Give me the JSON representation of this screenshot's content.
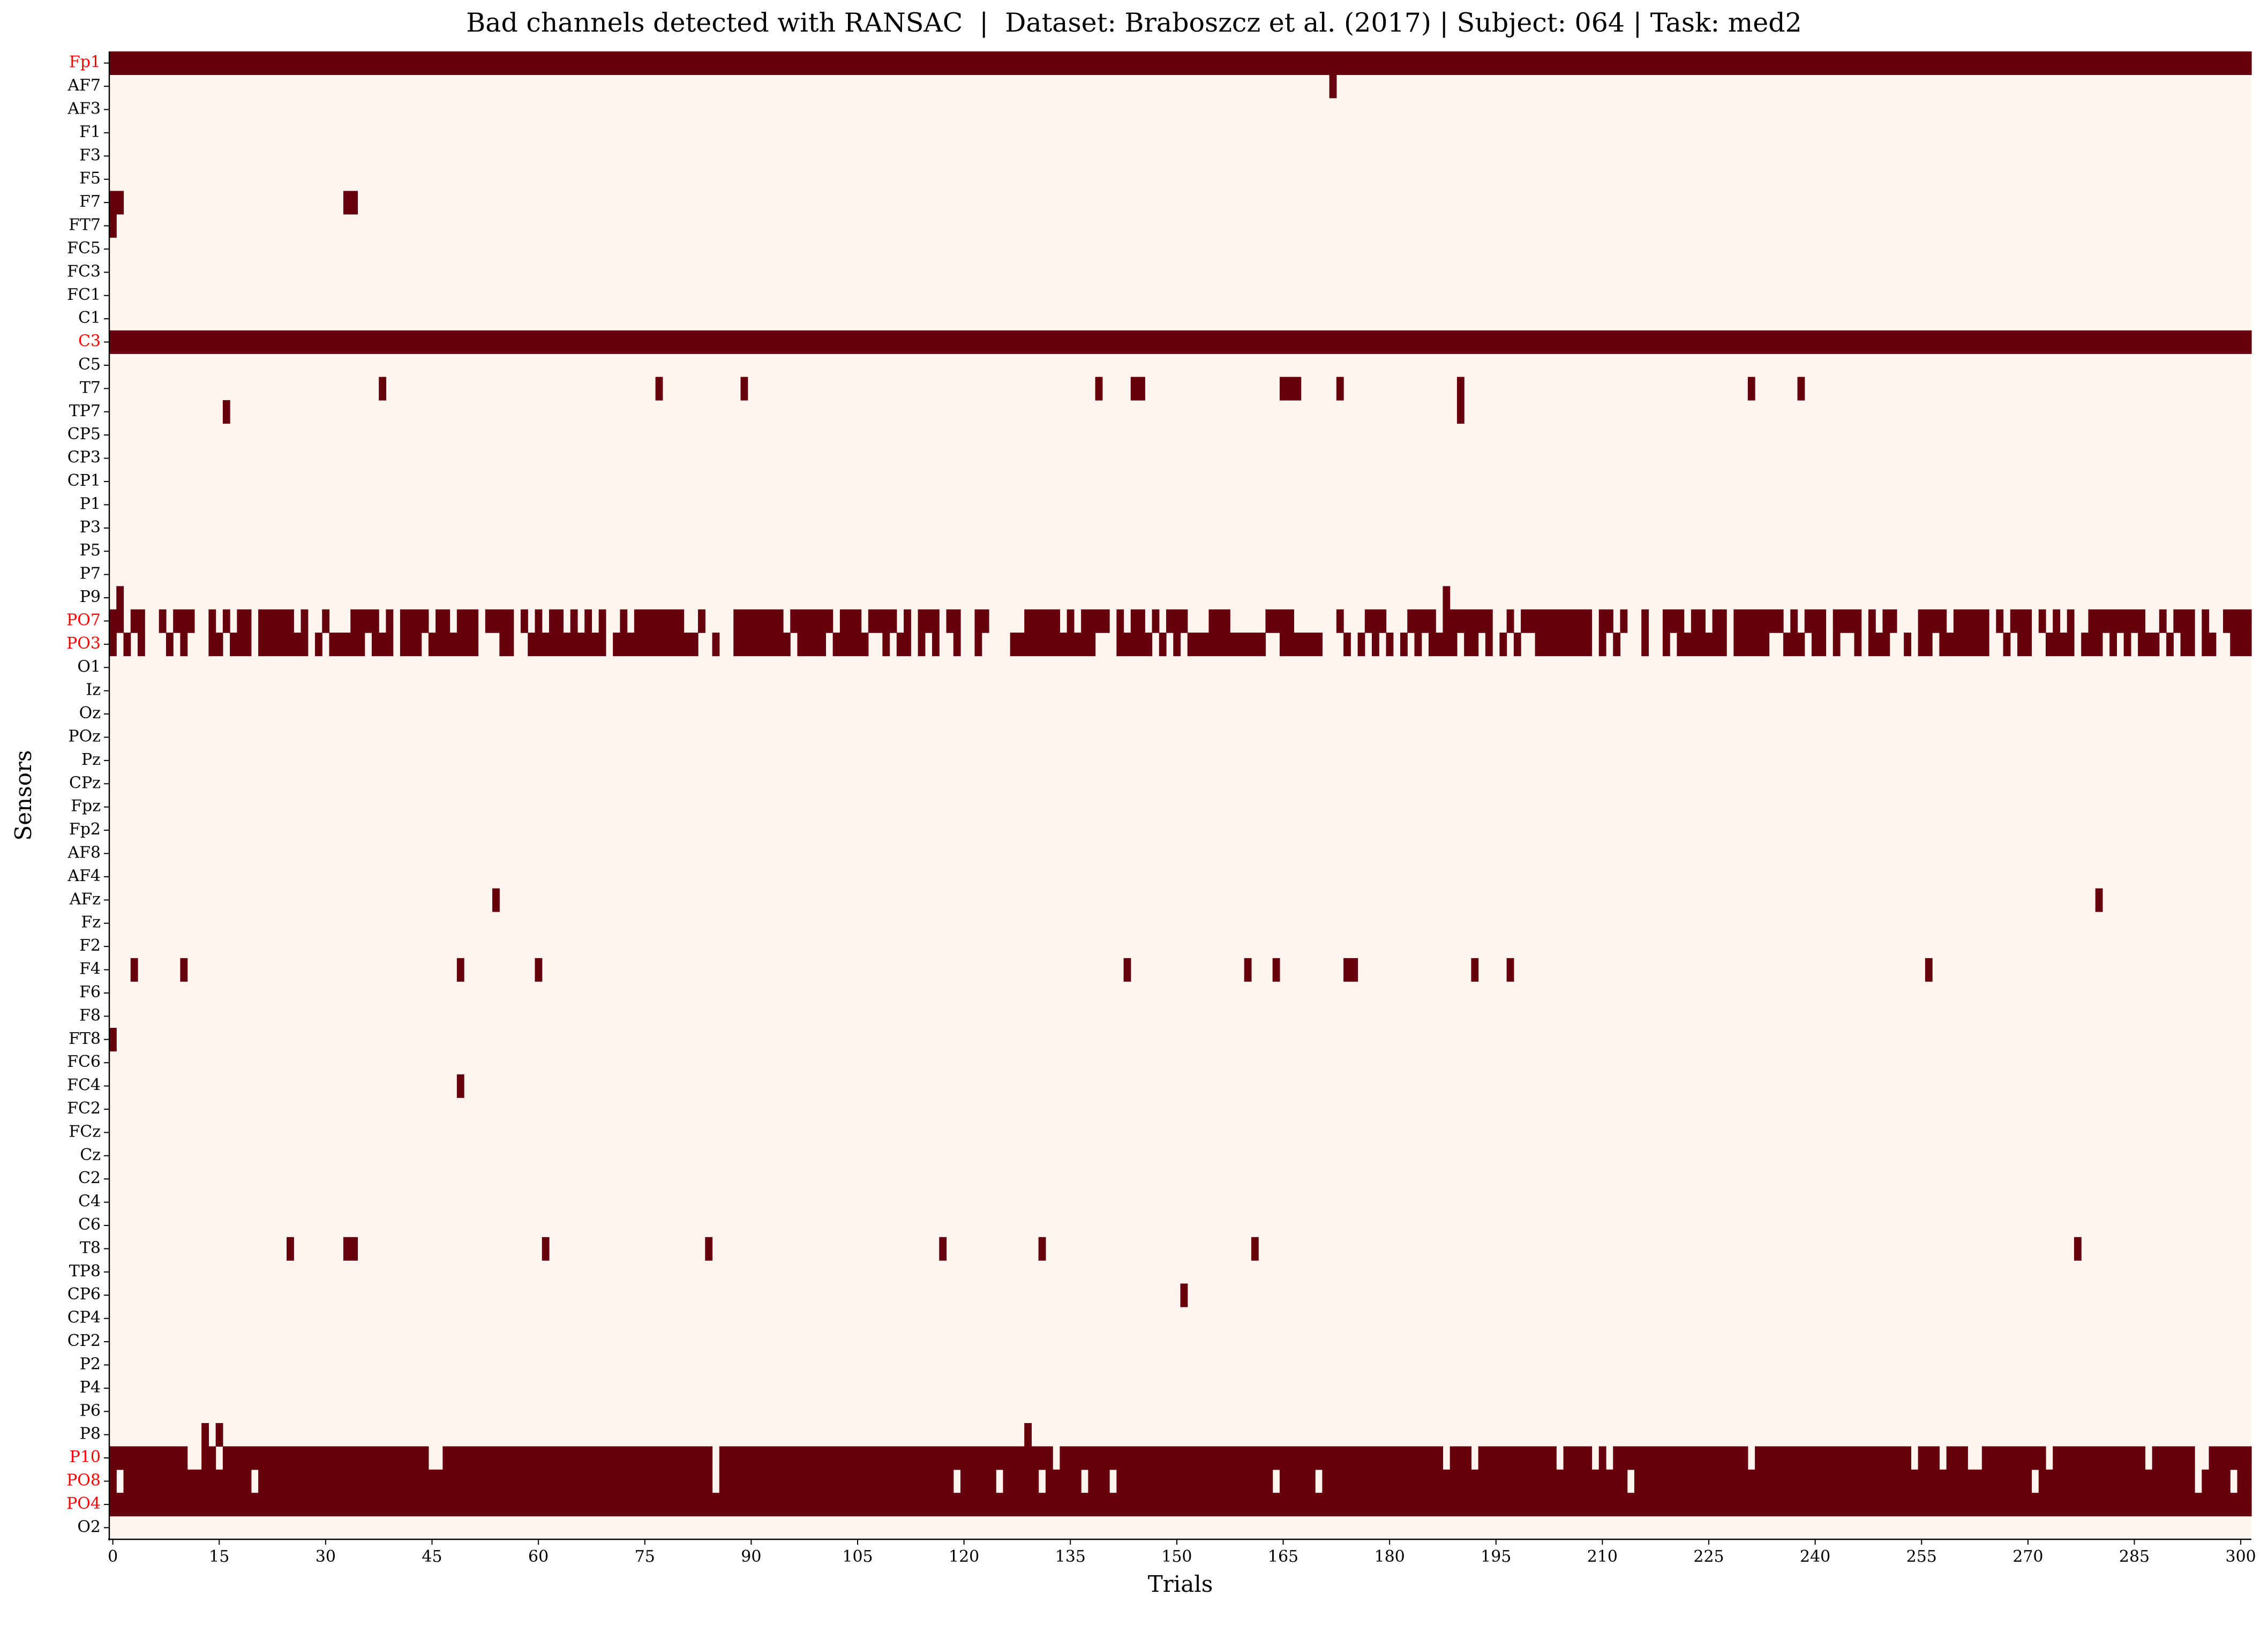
{
  "chart_data": {
    "type": "heatmap",
    "title": "Bad channels detected with RANSAC  |  Dataset: Braboszcz et al. (2017) | Subject: 064 | Task: med2",
    "xlabel": "Trials",
    "ylabel": "Sensors",
    "n_trials": 302,
    "xlim": [
      0,
      301
    ],
    "x_ticks": [
      "0",
      "15",
      "30",
      "45",
      "60",
      "75",
      "90",
      "105",
      "120",
      "135",
      "150",
      "165",
      "180",
      "195",
      "210",
      "225",
      "240",
      "255",
      "270",
      "285",
      "300"
    ],
    "colors": {
      "bad": "#67000d",
      "good": "#fff5f0",
      "bad_label": "#ff0000",
      "label": "#000000"
    },
    "sensors": [
      "Fp1",
      "AF7",
      "AF3",
      "F1",
      "F3",
      "F5",
      "F7",
      "FT7",
      "FC5",
      "FC3",
      "FC1",
      "C1",
      "C3",
      "C5",
      "T7",
      "TP7",
      "CP5",
      "CP3",
      "CP1",
      "P1",
      "P3",
      "P5",
      "P7",
      "P9",
      "PO7",
      "PO3",
      "O1",
      "Iz",
      "Oz",
      "POz",
      "Pz",
      "CPz",
      "Fpz",
      "Fp2",
      "AF8",
      "AF4",
      "AFz",
      "Fz",
      "F2",
      "F4",
      "F6",
      "F8",
      "FT8",
      "FC6",
      "FC4",
      "FC2",
      "FCz",
      "Cz",
      "C2",
      "C4",
      "C6",
      "T8",
      "TP8",
      "CP6",
      "CP4",
      "CP2",
      "P2",
      "P4",
      "P6",
      "P8",
      "P10",
      "PO8",
      "PO4",
      "O2"
    ],
    "bad_channels": [
      "Fp1",
      "C3",
      "PO7",
      "PO3",
      "P10",
      "PO8",
      "PO4"
    ],
    "bad_segments": {
      "Fp1": [
        [
          0,
          301
        ]
      ],
      "AF7": [
        [
          172,
          172
        ]
      ],
      "F7": [
        [
          0,
          1
        ],
        [
          33,
          34
        ]
      ],
      "FT7": [
        [
          0,
          0
        ]
      ],
      "C3": [
        [
          0,
          301
        ]
      ],
      "T7": [
        [
          38,
          38
        ],
        [
          77,
          77
        ],
        [
          89,
          89
        ],
        [
          139,
          139
        ],
        [
          144,
          145
        ],
        [
          165,
          167
        ],
        [
          173,
          173
        ],
        [
          190,
          190
        ],
        [
          231,
          231
        ],
        [
          238,
          238
        ]
      ],
      "TP7": [
        [
          16,
          16
        ],
        [
          190,
          190
        ]
      ],
      "P9": [
        [
          1,
          1
        ],
        [
          188,
          188
        ]
      ],
      "PO7": [
        [
          0,
          1
        ],
        [
          3,
          4
        ],
        [
          7,
          7
        ],
        [
          9,
          11
        ],
        [
          14,
          14
        ],
        [
          16,
          16
        ],
        [
          18,
          19
        ],
        [
          21,
          25
        ],
        [
          27,
          27
        ],
        [
          30,
          30
        ],
        [
          34,
          37
        ],
        [
          39,
          39
        ],
        [
          41,
          44
        ],
        [
          46,
          47
        ],
        [
          49,
          51
        ],
        [
          53,
          56
        ],
        [
          58,
          58
        ],
        [
          60,
          60
        ],
        [
          62,
          63
        ],
        [
          65,
          65
        ],
        [
          67,
          67
        ],
        [
          69,
          69
        ],
        [
          72,
          72
        ],
        [
          74,
          74
        ],
        [
          75,
          80
        ],
        [
          83,
          83
        ],
        [
          88,
          94
        ],
        [
          96,
          101
        ],
        [
          103,
          105
        ],
        [
          107,
          110
        ],
        [
          112,
          112
        ],
        [
          114,
          116
        ],
        [
          118,
          119
        ],
        [
          122,
          123
        ],
        [
          129,
          133
        ],
        [
          135,
          135
        ],
        [
          137,
          140
        ],
        [
          142,
          142
        ],
        [
          144,
          145
        ],
        [
          147,
          147
        ],
        [
          149,
          151
        ],
        [
          155,
          157
        ],
        [
          163,
          166
        ],
        [
          173,
          173
        ],
        [
          177,
          179
        ],
        [
          183,
          186
        ],
        [
          188,
          194
        ],
        [
          197,
          197
        ],
        [
          199,
          208
        ],
        [
          210,
          211
        ],
        [
          213,
          213
        ],
        [
          216,
          216
        ],
        [
          219,
          221
        ],
        [
          223,
          224
        ],
        [
          226,
          227
        ],
        [
          229,
          235
        ],
        [
          237,
          237
        ],
        [
          239,
          241
        ],
        [
          243,
          246
        ],
        [
          248,
          248
        ],
        [
          250,
          251
        ],
        [
          255,
          258
        ],
        [
          260,
          264
        ],
        [
          266,
          266
        ],
        [
          268,
          270
        ],
        [
          272,
          272
        ],
        [
          274,
          274
        ],
        [
          276,
          276
        ],
        [
          279,
          286
        ],
        [
          289,
          289
        ],
        [
          291,
          293
        ],
        [
          295,
          295
        ],
        [
          298,
          301
        ]
      ],
      "PO3": [
        [
          0,
          0
        ],
        [
          2,
          2
        ],
        [
          4,
          4
        ],
        [
          8,
          8
        ],
        [
          10,
          10
        ],
        [
          14,
          15
        ],
        [
          17,
          19
        ],
        [
          21,
          26
        ],
        [
          27,
          27
        ],
        [
          29,
          29
        ],
        [
          31,
          35
        ],
        [
          37,
          39
        ],
        [
          41,
          43
        ],
        [
          45,
          45
        ],
        [
          46,
          51
        ],
        [
          55,
          56
        ],
        [
          59,
          69
        ],
        [
          71,
          72
        ],
        [
          73,
          82
        ],
        [
          85,
          85
        ],
        [
          88,
          95
        ],
        [
          97,
          100
        ],
        [
          102,
          106
        ],
        [
          109,
          109
        ],
        [
          111,
          112
        ],
        [
          114,
          114
        ],
        [
          116,
          116
        ],
        [
          119,
          119
        ],
        [
          122,
          122
        ],
        [
          127,
          138
        ],
        [
          142,
          146
        ],
        [
          148,
          148
        ],
        [
          150,
          150
        ],
        [
          152,
          162
        ],
        [
          165,
          170
        ],
        [
          174,
          174
        ],
        [
          176,
          176
        ],
        [
          178,
          178
        ],
        [
          180,
          180
        ],
        [
          182,
          182
        ],
        [
          184,
          184
        ],
        [
          186,
          189
        ],
        [
          191,
          192
        ],
        [
          194,
          194
        ],
        [
          196,
          196
        ],
        [
          198,
          198
        ],
        [
          201,
          208
        ],
        [
          210,
          210
        ],
        [
          212,
          212
        ],
        [
          216,
          216
        ],
        [
          219,
          219
        ],
        [
          221,
          227
        ],
        [
          229,
          233
        ],
        [
          236,
          238
        ],
        [
          240,
          241
        ],
        [
          243,
          243
        ],
        [
          246,
          246
        ],
        [
          248,
          250
        ],
        [
          253,
          253
        ],
        [
          255,
          256
        ],
        [
          258,
          264
        ],
        [
          267,
          267
        ],
        [
          269,
          270
        ],
        [
          273,
          276
        ],
        [
          278,
          280
        ],
        [
          282,
          282
        ],
        [
          284,
          284
        ],
        [
          286,
          288
        ],
        [
          290,
          290
        ],
        [
          292,
          293
        ],
        [
          295,
          296
        ],
        [
          299,
          301
        ]
      ],
      "AFz": [
        [
          54,
          54
        ],
        [
          280,
          280
        ]
      ],
      "F4": [
        [
          3,
          3
        ],
        [
          10,
          10
        ],
        [
          49,
          49
        ],
        [
          60,
          60
        ],
        [
          143,
          143
        ],
        [
          160,
          160
        ],
        [
          164,
          164
        ],
        [
          174,
          175
        ],
        [
          192,
          192
        ],
        [
          197,
          197
        ],
        [
          256,
          256
        ]
      ],
      "FT8": [
        [
          0,
          0
        ]
      ],
      "FC4": [
        [
          49,
          49
        ]
      ],
      "T8": [
        [
          25,
          25
        ],
        [
          33,
          34
        ],
        [
          61,
          61
        ],
        [
          84,
          84
        ],
        [
          117,
          117
        ],
        [
          131,
          131
        ],
        [
          161,
          161
        ],
        [
          277,
          277
        ]
      ],
      "CP6": [
        [
          151,
          151
        ]
      ],
      "P8": [
        [
          13,
          13
        ],
        [
          15,
          15
        ],
        [
          129,
          129
        ]
      ],
      "P10": [
        [
          0,
          10
        ],
        [
          13,
          14
        ],
        [
          16,
          44
        ],
        [
          47,
          84
        ],
        [
          86,
          132
        ],
        [
          134,
          187
        ],
        [
          189,
          191
        ],
        [
          193,
          203
        ],
        [
          205,
          208
        ],
        [
          210,
          210
        ],
        [
          212,
          230
        ],
        [
          232,
          253
        ],
        [
          255,
          257
        ],
        [
          259,
          261
        ],
        [
          264,
          272
        ],
        [
          274,
          286
        ],
        [
          288,
          293
        ],
        [
          296,
          301
        ]
      ],
      "PO8": [
        [
          0,
          0
        ],
        [
          2,
          19
        ],
        [
          21,
          84
        ],
        [
          86,
          118
        ],
        [
          120,
          124
        ],
        [
          126,
          130
        ],
        [
          132,
          136
        ],
        [
          138,
          140
        ],
        [
          142,
          163
        ],
        [
          165,
          169
        ],
        [
          171,
          213
        ],
        [
          215,
          270
        ],
        [
          272,
          293
        ],
        [
          295,
          298
        ],
        [
          300,
          301
        ]
      ],
      "PO4": [
        [
          0,
          301
        ]
      ]
    }
  }
}
